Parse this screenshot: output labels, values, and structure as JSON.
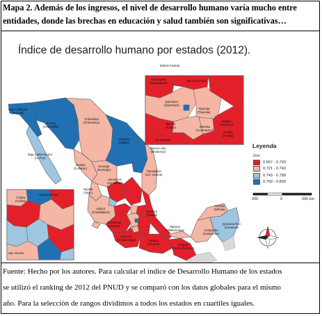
{
  "caption": {
    "lines": [
      "Mapa 2. Además de los ingresos, el nivel de desarrollo humano varía mucho entre",
      "entidades, donde las brechas en educación y salud también son significativas…"
    ]
  },
  "map": {
    "title": "Índice de desarrollo humano por estados (2012).",
    "legend": {
      "title": "Leyenda",
      "subtitle": "IDH",
      "items": [
        {
          "label": "0.667 - 0.720",
          "color": "#e3202a"
        },
        {
          "label": "0.721 - 0.742",
          "color": "#f4b7a6"
        },
        {
          "label": "0.743 - 0.758",
          "color": "#9fc6e0"
        },
        {
          "label": "0.759 - 0.830",
          "color": "#2071b4"
        }
      ]
    },
    "scale_bar": {
      "labels": [
        "200",
        "0",
        "200 km"
      ]
    },
    "state_labels": [
      {
        "text": "Baja California\n(Mexicali)"
      },
      {
        "text": "Sonora\n(Hermosillo)"
      },
      {
        "text": "Baja California Sur\n(La Paz)"
      },
      {
        "text": "Chihuahua\n(Chihuahua)"
      },
      {
        "text": "Coahuila\n(Saltillo)"
      },
      {
        "text": "Nuevo León\n(Monterrey)"
      },
      {
        "text": "Sinaloa\n(Culiacán)"
      },
      {
        "text": "Durango\n(Durango)"
      },
      {
        "text": "Tamaulipas\n(Cd. Victoria)"
      },
      {
        "text": "Zacatecas\n(Zacatecas)"
      },
      {
        "text": "Nayarit\n(Tepic)"
      },
      {
        "text": "Jalisco\n(Guadalajara)"
      },
      {
        "text": "Michoacán\n(Morelia)"
      },
      {
        "text": "Guerrero\n(Chilpancingo)"
      },
      {
        "text": "Oaxaca\n(Oaxaca)"
      },
      {
        "text": "Chiapas\n(Tuxtla Gutiérrez)"
      },
      {
        "text": "Veracruz\n(Xalapa)"
      },
      {
        "text": "Tabasco\n(Villahermosa)"
      },
      {
        "text": "Campeche\n(Campeche)"
      },
      {
        "text": "Yucatán\n(Mérida)"
      },
      {
        "text": "Quintana Roo\n(Chetumal)"
      },
      {
        "text": "Hidalgo\n(Pachuca)"
      },
      {
        "text": "Querétaro\n(Querétaro)"
      },
      {
        "text": "Puebla\n(Puebla)"
      },
      {
        "text": "México\n(Toluca)"
      },
      {
        "text": "Tlaxcala\n(Tlaxcala)"
      },
      {
        "text": "Morelos\n(Cuernavaca)"
      },
      {
        "text": "Guanajuato\n(Guanajuato)"
      },
      {
        "text": "San Luis Potosí"
      },
      {
        "text": "Colima\n(Colima)"
      },
      {
        "text": "Aguascalientes"
      },
      {
        "text": "Distrito Federal"
      },
      {
        "text": "El Salvador"
      },
      {
        "text": "San Vicente"
      }
    ]
  },
  "footnote": {
    "lines": [
      "Fuente: Hecho por los autores. Para calcular el índice de Desarrollo Humano de los estados",
      "se utilizó el ranking de 2012 del PNUD y se comparó con los datos globales para el mismo",
      "año. Para la selección de rangos dividimos a todos los estados en cuartiles iguales."
    ]
  }
}
